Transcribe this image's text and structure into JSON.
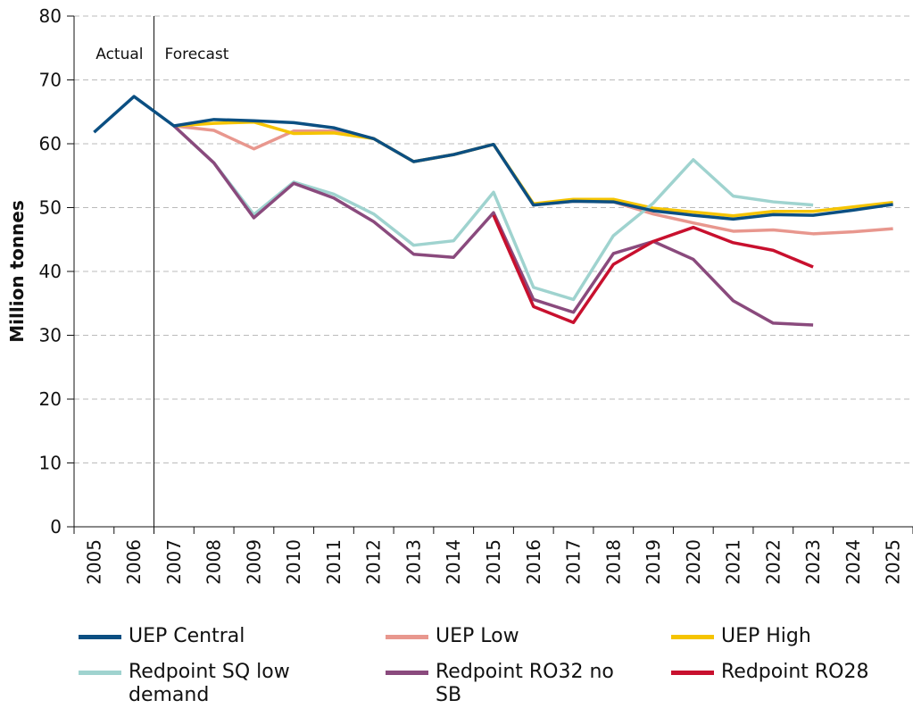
{
  "chart_data": {
    "type": "line",
    "ylabel": "Million tonnes",
    "annotations": [
      "Actual",
      "Forecast"
    ],
    "categories": [
      "2005",
      "2006",
      "2007",
      "2008",
      "2009",
      "2010",
      "2011",
      "2012",
      "2013",
      "2014",
      "2015",
      "2016",
      "2017",
      "2018",
      "2019",
      "2020",
      "2021",
      "2022",
      "2023",
      "2024",
      "2025"
    ],
    "series": [
      {
        "name": "UEP Low",
        "color": "#e8978e",
        "values": [
          null,
          null,
          62.8,
          62.1,
          59.2,
          62.0,
          62.0,
          60.8,
          57.2,
          58.3,
          59.9,
          50.4,
          51.0,
          50.9,
          49.0,
          47.6,
          46.3,
          46.5,
          45.9,
          46.2,
          46.7
        ]
      },
      {
        "name": "UEP High",
        "color": "#f5c400",
        "values": [
          null,
          null,
          62.8,
          63.2,
          63.4,
          61.6,
          61.7,
          60.8,
          57.2,
          58.3,
          59.9,
          50.6,
          51.3,
          51.3,
          49.9,
          49.3,
          48.7,
          49.4,
          49.4,
          50.1,
          50.8
        ]
      },
      {
        "name": "Redpoint SQ low demand",
        "color": "#9fd3cf",
        "values": [
          null,
          null,
          62.8,
          57.0,
          48.9,
          54.0,
          52.1,
          49.0,
          44.1,
          44.8,
          52.4,
          37.5,
          35.6,
          45.6,
          50.7,
          57.5,
          51.8,
          50.9,
          50.4,
          null,
          null
        ]
      },
      {
        "name": "Redpoint RO32 no SB",
        "color": "#8a4a7d",
        "values": [
          null,
          null,
          62.8,
          57.0,
          48.4,
          53.8,
          51.5,
          47.8,
          42.7,
          42.2,
          49.2,
          35.6,
          33.6,
          42.8,
          44.7,
          41.9,
          35.4,
          31.9,
          31.6,
          null,
          null
        ]
      },
      {
        "name": "Redpoint RO28",
        "color": "#c8102e",
        "values": [
          null,
          null,
          null,
          null,
          null,
          null,
          null,
          null,
          null,
          null,
          48.8,
          34.5,
          32.0,
          41.1,
          44.7,
          46.9,
          44.5,
          43.3,
          40.7,
          null,
          null
        ]
      },
      {
        "name": "UEP Central",
        "color": "#0b4f82",
        "values": [
          61.8,
          67.4,
          62.8,
          63.8,
          63.6,
          63.3,
          62.5,
          60.8,
          57.2,
          58.3,
          59.9,
          50.4,
          51.0,
          50.9,
          49.5,
          48.8,
          48.2,
          48.9,
          48.8,
          49.6,
          50.5
        ]
      }
    ],
    "legend_order": [
      5,
      0,
      1,
      2,
      3,
      4
    ],
    "ylim": [
      0,
      80
    ],
    "yticks": [
      0,
      10,
      20,
      30,
      40,
      50,
      60,
      70,
      80
    ],
    "grid": true
  }
}
